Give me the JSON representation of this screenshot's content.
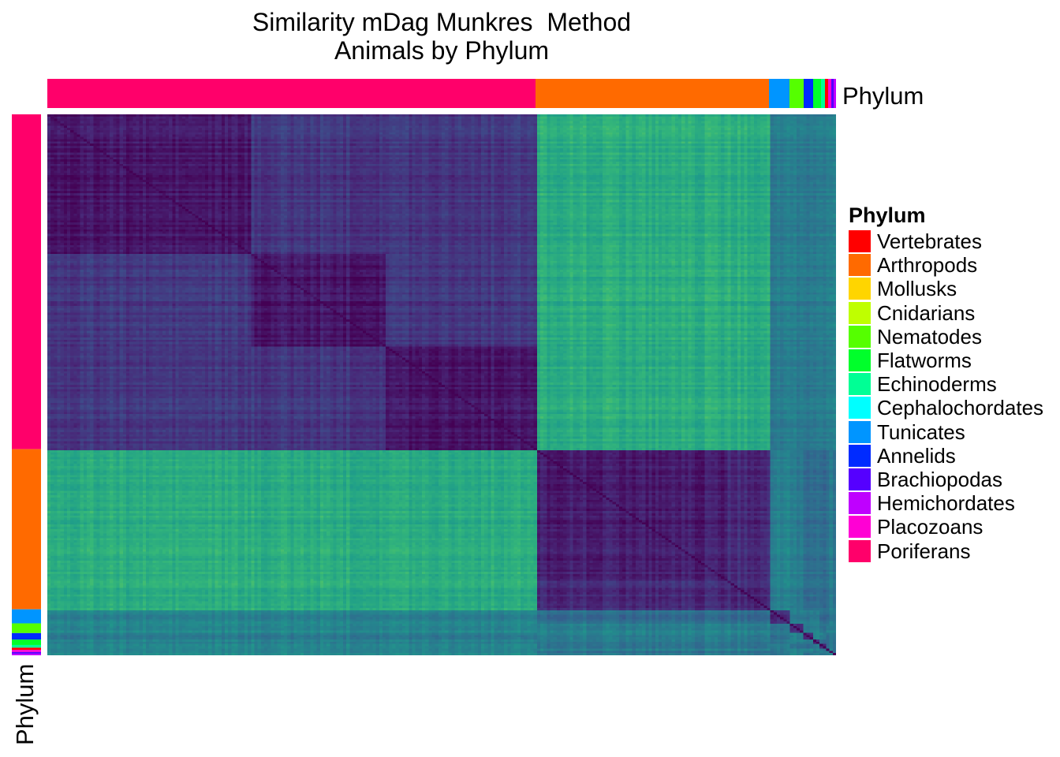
{
  "chart_data": {
    "type": "heatmap",
    "title_lines": [
      "Similarity mDag Munkres  Method",
      "Animals by Phylum"
    ],
    "annotation_label": "Phylum",
    "legend": {
      "title": "Phylum",
      "placement": "right",
      "entries": [
        {
          "name": "Vertebrates",
          "color": "#FF0000"
        },
        {
          "name": "Arthropods",
          "color": "#FF6A00"
        },
        {
          "name": "Mollusks",
          "color": "#FFD500"
        },
        {
          "name": "Cnidarians",
          "color": "#BFFF00"
        },
        {
          "name": "Nematodes",
          "color": "#55FF00"
        },
        {
          "name": "Flatworms",
          "color": "#00FF2B"
        },
        {
          "name": "Echinoderms",
          "color": "#00FF95"
        },
        {
          "name": "Cephalochordates",
          "color": "#00FFFF"
        },
        {
          "name": "Tunicates",
          "color": "#0095FF"
        },
        {
          "name": "Annelids",
          "color": "#002BFF"
        },
        {
          "name": "Brachiopodas",
          "color": "#5500FF"
        },
        {
          "name": "Hemichordates",
          "color": "#BF00FF"
        },
        {
          "name": "Placozoans",
          "color": "#FF00D4"
        },
        {
          "name": "Poriferans",
          "color": "#FF006A"
        }
      ]
    },
    "groups": [
      {
        "phylum": "Poriferans",
        "fraction": 0.619
      },
      {
        "phylum": "Arthropods",
        "fraction": 0.296
      },
      {
        "phylum": "Tunicates",
        "fraction": 0.026
      },
      {
        "phylum": "Nematodes",
        "fraction": 0.018
      },
      {
        "phylum": "Annelids",
        "fraction": 0.012
      },
      {
        "phylum": "Flatworms",
        "fraction": 0.01
      },
      {
        "phylum": "Echinoderms",
        "fraction": 0.005
      },
      {
        "phylum": "Vertebrates",
        "fraction": 0.004
      },
      {
        "phylum": "Placozoans",
        "fraction": 0.004
      },
      {
        "phylum": "Brachiopodas",
        "fraction": 0.003
      },
      {
        "phylum": "Hemichordates",
        "fraction": 0.003
      }
    ],
    "poriferan_subclusters": [
      0.42,
      0.27,
      0.31
    ],
    "similarity_colormap": "viridis",
    "similarity_levels": {
      "within_subcluster": 0.06,
      "within_poriferans": 0.16,
      "poriferans_vs_arthropods": 0.62,
      "within_arthropods": 0.12,
      "arthropods_core": 0.08,
      "small_phyla": 0.4
    }
  }
}
